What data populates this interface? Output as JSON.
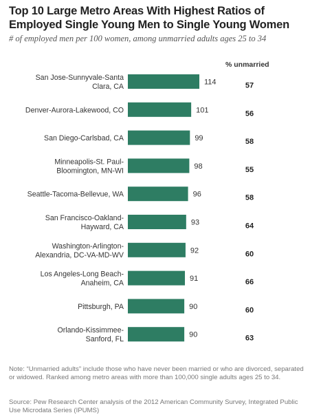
{
  "title_lines": [
    "Top 10 Large Metro Areas With Highest Ratios of",
    "Employed Single Young Men to Single Young Women"
  ],
  "subtitle": "# of employed men per 100 women, among unmarried adults ages 25 to 34",
  "column_header": "% unmarried",
  "note": "Note: “Unmarried adults” include those who have never been married or who are divorced, separated or widowed. Ranked among metro areas with more than 100,000 single adults ages 25 to 34.",
  "source": "Source: Pew Research Center analysis of the 2012 American Community Survey, Integrated Public Use Microdata Series (IPUMS)",
  "colors": {
    "bar": "#2e7d63"
  },
  "chart_data": {
    "type": "bar",
    "orientation": "horizontal",
    "categories": [
      [
        "San Jose-Sunnyvale-Santa",
        "Clara, CA"
      ],
      [
        "Denver-Aurora-Lakewood, CO"
      ],
      [
        "San Diego-Carlsbad, CA"
      ],
      [
        "Minneapolis-St. Paul-",
        "Bloomington, MN-WI"
      ],
      [
        "Seattle-Tacoma-Bellevue, WA"
      ],
      [
        "San Francisco-Oakland-",
        "Hayward, CA"
      ],
      [
        "Washington-Arlington-",
        "Alexandria, DC-VA-MD-WV"
      ],
      [
        "Los Angeles-Long Beach-",
        "Anaheim, CA"
      ],
      [
        "Pittsburgh, PA"
      ],
      [
        "Orlando-Kissimmee-",
        "Sanford, FL"
      ]
    ],
    "values": [
      114,
      101,
      99,
      98,
      96,
      93,
      92,
      91,
      90,
      90
    ],
    "pct_unmarried": [
      57,
      56,
      58,
      55,
      58,
      64,
      60,
      66,
      60,
      63
    ],
    "xlim": [
      0,
      114
    ]
  }
}
